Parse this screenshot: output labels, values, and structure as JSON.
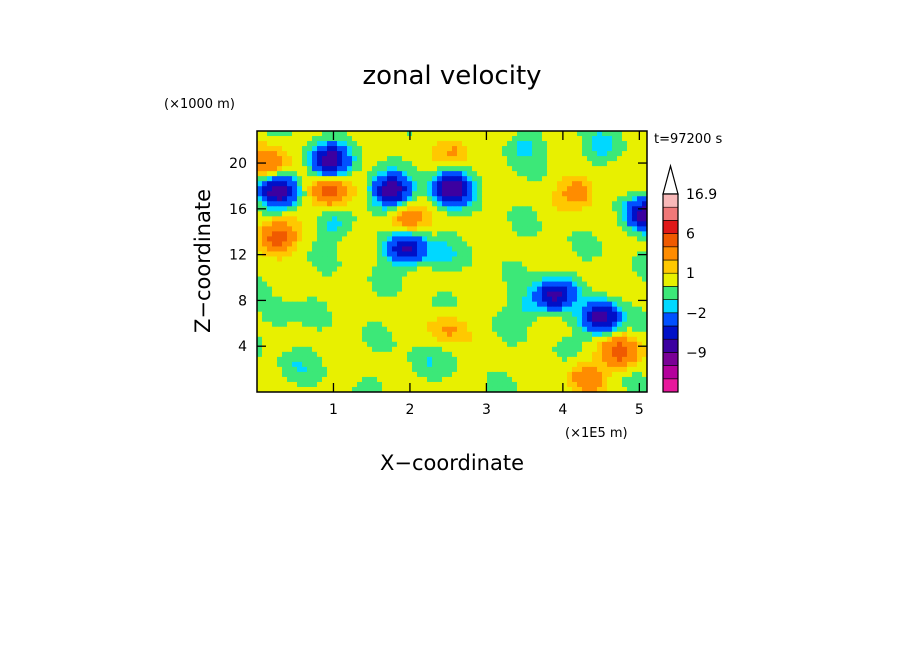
{
  "chart_data": {
    "type": "heatmap",
    "title": "zonal velocity",
    "xlabel": "X−coordinate",
    "ylabel": "Z−coordinate",
    "x_unit": "(×1E5 m)",
    "y_unit": "(×1000 m)",
    "time_label": "t=97200 s",
    "xlim": [
      0,
      5.1
    ],
    "ylim": [
      0,
      22.8
    ],
    "x_ticks": [
      {
        "value": 1,
        "label": "1"
      },
      {
        "value": 2,
        "label": "2"
      },
      {
        "value": 3,
        "label": "3"
      },
      {
        "value": 4,
        "label": "4"
      },
      {
        "value": 5,
        "label": "5"
      }
    ],
    "y_ticks": [
      {
        "value": 4,
        "label": "4"
      },
      {
        "value": 8,
        "label": "8"
      },
      {
        "value": 12,
        "label": "12"
      },
      {
        "value": 16,
        "label": "16"
      },
      {
        "value": 20,
        "label": "20"
      }
    ],
    "colorbar": {
      "levels": [
        -16,
        -13,
        -9,
        -6,
        -4,
        -2,
        -1,
        0,
        1,
        2,
        4,
        6,
        9,
        13,
        16.9
      ],
      "colors": [
        "#e8189c",
        "#b4009c",
        "#7a0096",
        "#3c00a0",
        "#0010c8",
        "#0050ff",
        "#00d8ff",
        "#3ce878",
        "#e8f000",
        "#ffc800",
        "#ff8c00",
        "#f05a00",
        "#e01818",
        "#f07878",
        "#f8b8b8"
      ],
      "labels": [
        {
          "value": 16.9,
          "label": "16.9"
        },
        {
          "value": 6,
          "label": "6"
        },
        {
          "value": 1,
          "label": "1"
        },
        {
          "value": -2,
          "label": "−2"
        },
        {
          "value": -9,
          "label": "−9"
        }
      ]
    },
    "features": [
      {
        "x": 0.28,
        "z": 17.5,
        "value": -8
      },
      {
        "x": 0.12,
        "z": 20.0,
        "value": 4
      },
      {
        "x": 0.25,
        "z": 13.5,
        "value": 5
      },
      {
        "x": 0.95,
        "z": 20.2,
        "value": -8
      },
      {
        "x": 0.95,
        "z": 17.5,
        "value": 5
      },
      {
        "x": 1.0,
        "z": 14.5,
        "value": -1.5
      },
      {
        "x": 1.75,
        "z": 17.6,
        "value": -8
      },
      {
        "x": 2.55,
        "z": 17.8,
        "value": -9
      },
      {
        "x": 1.95,
        "z": 15.0,
        "value": 3
      },
      {
        "x": 1.95,
        "z": 12.5,
        "value": -7
      },
      {
        "x": 2.4,
        "z": 12.0,
        "value": -1.5
      },
      {
        "x": 2.6,
        "z": 21.0,
        "value": 2
      },
      {
        "x": 3.5,
        "z": 21.5,
        "value": -1.5
      },
      {
        "x": 4.2,
        "z": 17.5,
        "value": 3
      },
      {
        "x": 4.5,
        "z": 21.5,
        "value": -1.5
      },
      {
        "x": 5.05,
        "z": 15.5,
        "value": -7
      },
      {
        "x": 3.9,
        "z": 8.5,
        "value": -7
      },
      {
        "x": 4.5,
        "z": 6.5,
        "value": -8
      },
      {
        "x": 3.55,
        "z": 7.5,
        "value": -1.5
      },
      {
        "x": 4.75,
        "z": 3.5,
        "value": 5
      },
      {
        "x": 4.3,
        "z": 1.2,
        "value": 3
      },
      {
        "x": 0.3,
        "z": 6.5,
        "value": -1
      },
      {
        "x": 2.5,
        "z": 5.5,
        "value": 2
      },
      {
        "x": 2.2,
        "z": 2.5,
        "value": -1
      },
      {
        "x": 0.5,
        "z": 2.2,
        "value": -1
      }
    ]
  }
}
